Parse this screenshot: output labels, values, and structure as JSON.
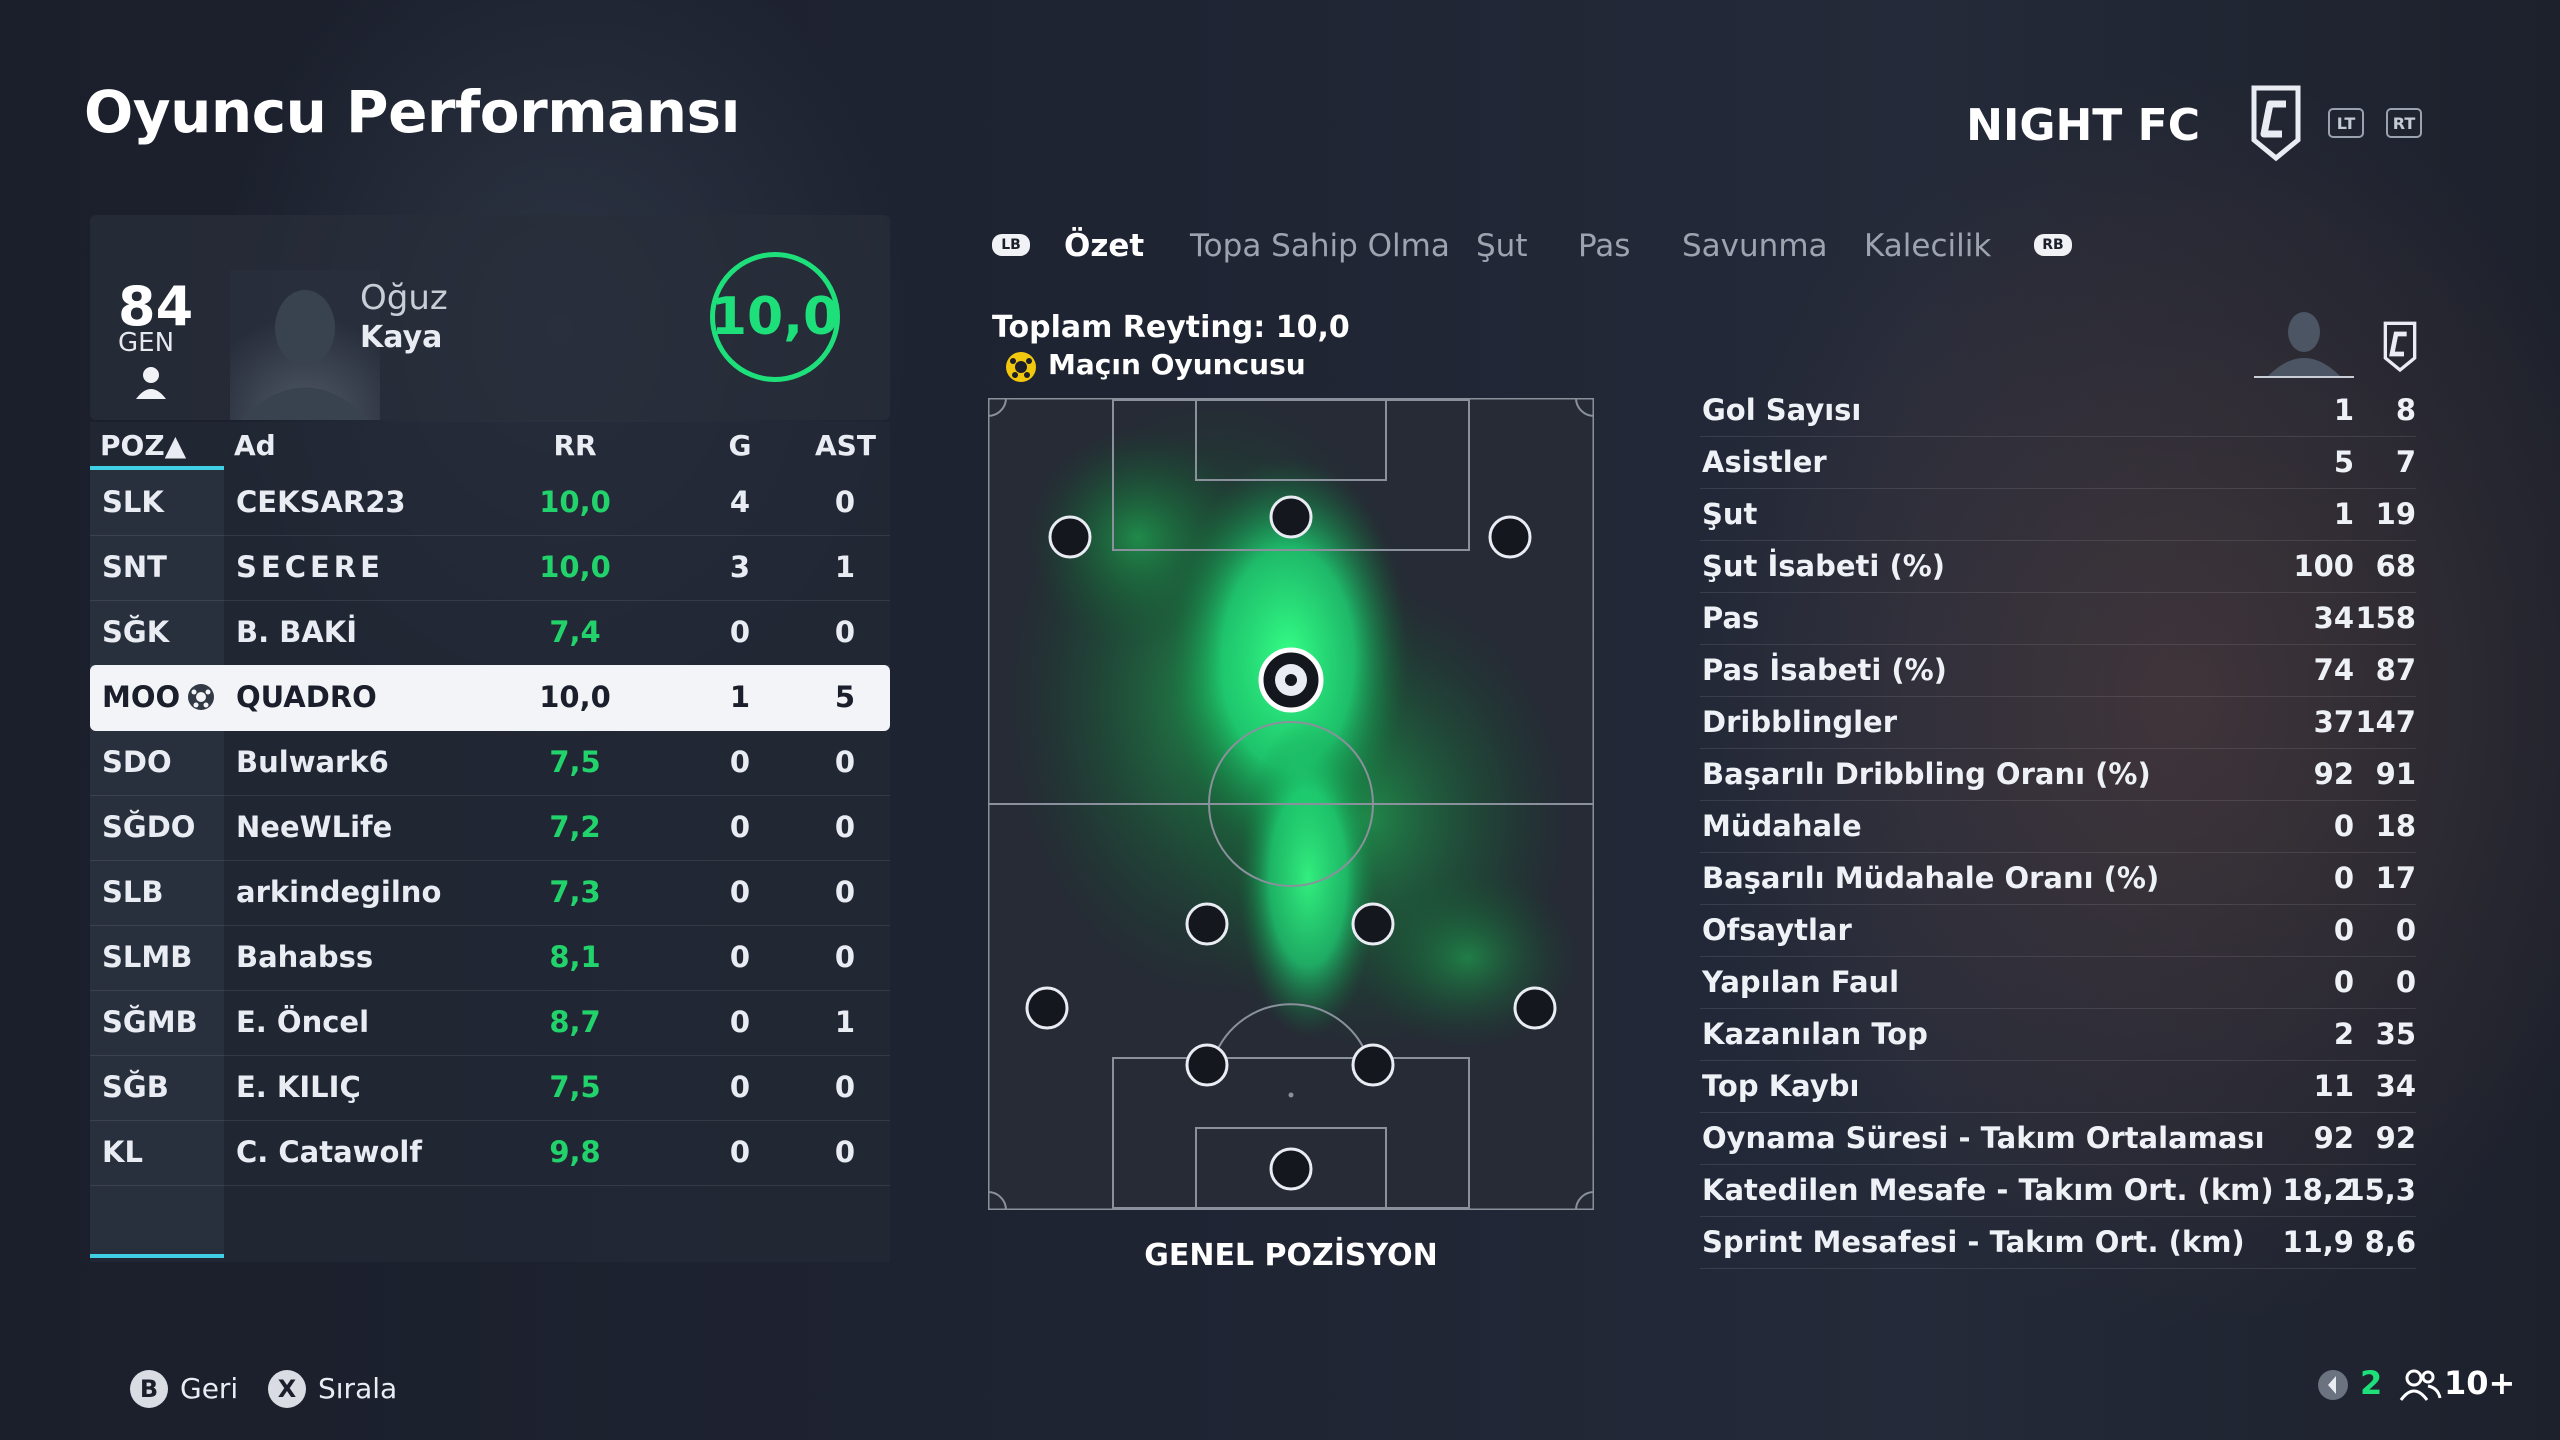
{
  "header": {
    "title": "Oyuncu Performansı",
    "club_name": "NIGHT FC",
    "lt_label": "LT",
    "rt_label": "RT"
  },
  "player": {
    "overall": "84",
    "overall_label": "GEN",
    "first_name": "Oğuz",
    "last_name": "Kaya",
    "rating": "10,0"
  },
  "table": {
    "headers": {
      "poz": "POZ▲",
      "ad": "Ad",
      "rr": "RR",
      "g": "G",
      "ast": "AST"
    },
    "rows": [
      {
        "poz": "SLK",
        "ad": "CEKSAR23",
        "rr": "10,0",
        "g": "4",
        "ast": "0"
      },
      {
        "poz": "SNT",
        "ad": "SECERE",
        "rr": "10,0",
        "g": "3",
        "ast": "1"
      },
      {
        "poz": "SĞK",
        "ad": "B. BAKİ",
        "rr": "7,4",
        "g": "0",
        "ast": "0"
      },
      {
        "poz": "MOO",
        "ad": "QUADRO",
        "rr": "10,0",
        "g": "1",
        "ast": "5"
      },
      {
        "poz": "SDO",
        "ad": "Bulwark6",
        "rr": "7,5",
        "g": "0",
        "ast": "0"
      },
      {
        "poz": "SĞDO",
        "ad": "NeeWLife",
        "rr": "7,2",
        "g": "0",
        "ast": "0"
      },
      {
        "poz": "SLB",
        "ad": "arkindegilno",
        "rr": "7,3",
        "g": "0",
        "ast": "0"
      },
      {
        "poz": "SLMB",
        "ad": "Bahabss",
        "rr": "8,1",
        "g": "0",
        "ast": "0"
      },
      {
        "poz": "SĞMB",
        "ad": "E. Öncel",
        "rr": "8,7",
        "g": "0",
        "ast": "1"
      },
      {
        "poz": "SĞB",
        "ad": "E. KILIÇ",
        "rr": "7,5",
        "g": "0",
        "ast": "0"
      },
      {
        "poz": "KL",
        "ad": "C. Catawolf",
        "rr": "9,8",
        "g": "0",
        "ast": "0"
      }
    ]
  },
  "tabs": {
    "lb": "LB",
    "rb": "RB",
    "items": [
      "Özet",
      "Topa Sahip Olma",
      "Şut",
      "Pas",
      "Savunma",
      "Kalecilik"
    ]
  },
  "pitch": {
    "total_rating": "Toplam Reyting: 10,0",
    "motm": "Maçın Oyuncusu",
    "title": "GENEL POZİSYON"
  },
  "stats": [
    {
      "label": "Gol Sayısı",
      "player": "1",
      "team": "8"
    },
    {
      "label": "Asistler",
      "player": "5",
      "team": "7"
    },
    {
      "label": "Şut",
      "player": "1",
      "team": "19"
    },
    {
      "label": "Şut İsabeti (%)",
      "player": "100",
      "team": "68"
    },
    {
      "label": "Pas",
      "player": "34",
      "team": "158"
    },
    {
      "label": "Pas İsabeti (%)",
      "player": "74",
      "team": "87"
    },
    {
      "label": "Dribblingler",
      "player": "37",
      "team": "147"
    },
    {
      "label": "Başarılı Dribbling Oranı (%)",
      "player": "92",
      "team": "91"
    },
    {
      "label": "Müdahale",
      "player": "0",
      "team": "18"
    },
    {
      "label": "Başarılı Müdahale Oranı (%)",
      "player": "0",
      "team": "17"
    },
    {
      "label": "Ofsaytlar",
      "player": "0",
      "team": "0"
    },
    {
      "label": "Yapılan Faul",
      "player": "0",
      "team": "0"
    },
    {
      "label": "Kazanılan Top",
      "player": "2",
      "team": "35"
    },
    {
      "label": "Top Kaybı",
      "player": "11",
      "team": "34"
    },
    {
      "label": "Oynama Süresi - Takım Ortalaması",
      "player": "92",
      "team": "92"
    },
    {
      "label": "Katedilen Mesafe - Takım Ort. (km)",
      "player": "18,2",
      "team": "15,3"
    },
    {
      "label": "Sprint Mesafesi - Takım Ort. (km)",
      "player": "11,9",
      "team": "8,6"
    }
  ],
  "footer": {
    "back_key": "B",
    "back_label": "Geri",
    "sort_key": "X",
    "sort_label": "Sırala",
    "online_count": "2",
    "players_count": "10+"
  },
  "colors": {
    "accent_green": "#1ee07a",
    "accent_cyan": "#3fd0e6"
  }
}
